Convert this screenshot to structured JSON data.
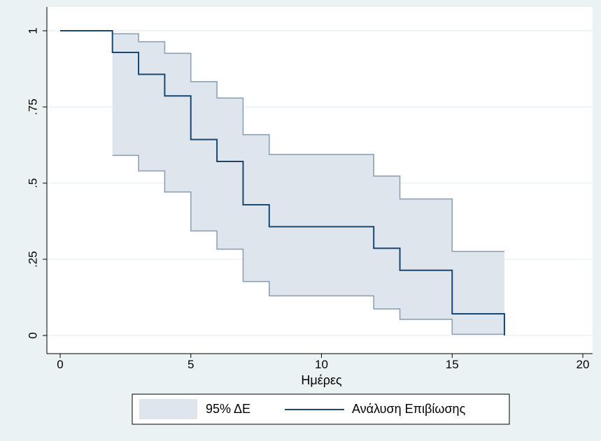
{
  "chart_data": {
    "type": "step-line",
    "title": "",
    "xlabel": "Ημέρες",
    "ylabel": "",
    "xlim": [
      0,
      20
    ],
    "ylim": [
      0,
      1
    ],
    "x_ticks": [
      "0",
      "5",
      "10",
      "15",
      "20"
    ],
    "y_ticks": [
      "0",
      ".25",
      ".5",
      ".75",
      "1"
    ],
    "grid": true,
    "legend_position": "bottom",
    "colors": {
      "page_bg": "#eaf2f3",
      "plot_bg": "#ffffff",
      "gridline": "#e9eff2",
      "ci_fill": "#dfe5ec",
      "ci_line": "#8ea2b3",
      "survival_line": "#1a476f"
    },
    "series": [
      {
        "name": "Ανάλυση Επιβίωσης",
        "style": "step",
        "x": [
          0,
          2,
          3,
          4,
          5,
          6,
          7,
          8,
          12,
          13,
          15,
          17
        ],
        "y": [
          1.0,
          0.929,
          0.857,
          0.786,
          0.643,
          0.571,
          0.429,
          0.357,
          0.286,
          0.214,
          0.071,
          0.0
        ]
      }
    ],
    "ci_band": {
      "name": "95% ΔΕ",
      "x": [
        2,
        3,
        4,
        5,
        6,
        7,
        8,
        12,
        13,
        15,
        17
      ],
      "upper": [
        0.99,
        0.964,
        0.926,
        0.833,
        0.779,
        0.659,
        0.594,
        0.523,
        0.448,
        0.276,
        0.276
      ],
      "lower": [
        0.591,
        0.54,
        0.471,
        0.343,
        0.283,
        0.177,
        0.13,
        0.087,
        0.053,
        0.004,
        0.004
      ]
    },
    "legend": [
      {
        "label": "95% ΔΕ",
        "kind": "area"
      },
      {
        "label": "Ανάλυση Επιβίωσης",
        "kind": "line"
      }
    ]
  }
}
